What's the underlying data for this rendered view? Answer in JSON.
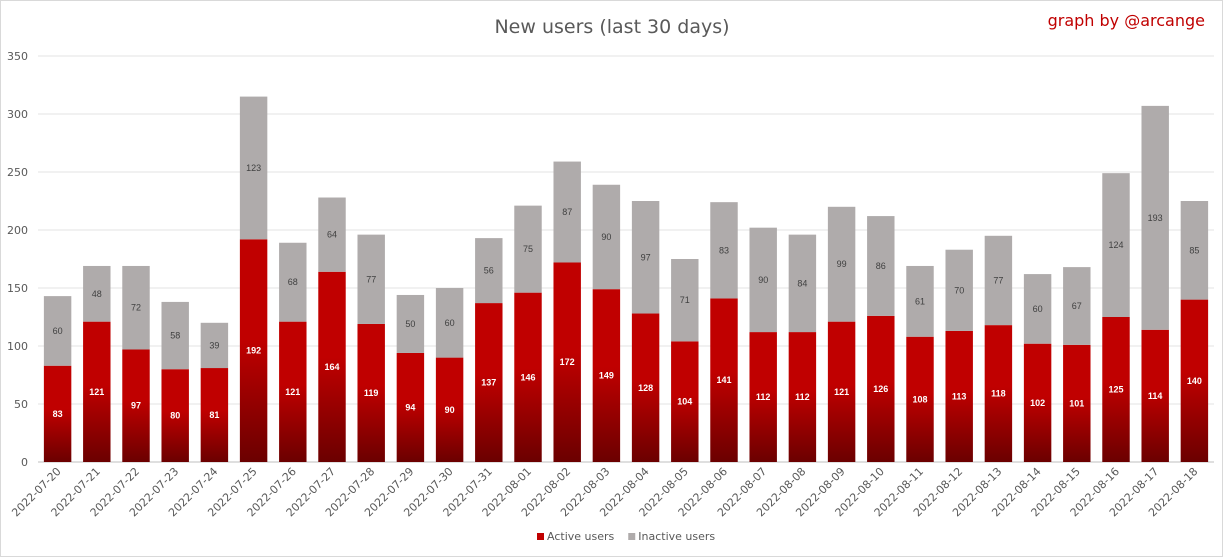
{
  "chart_data": {
    "type": "bar",
    "stacked": true,
    "title": "New users (last 30 days)",
    "credit": "graph by @arcange",
    "categories": [
      "2022-07-20",
      "2022-07-21",
      "2022-07-22",
      "2022-07-23",
      "2022-07-24",
      "2022-07-25",
      "2022-07-26",
      "2022-07-27",
      "2022-07-28",
      "2022-07-29",
      "2022-07-30",
      "2022-07-31",
      "2022-08-01",
      "2022-08-02",
      "2022-08-03",
      "2022-08-04",
      "2022-08-05",
      "2022-08-06",
      "2022-08-07",
      "2022-08-08",
      "2022-08-09",
      "2022-08-10",
      "2022-08-11",
      "2022-08-12",
      "2022-08-13",
      "2022-08-14",
      "2022-08-15",
      "2022-08-16",
      "2022-08-17",
      "2022-08-18"
    ],
    "series": [
      {
        "name": "Active users",
        "color": "#c00000",
        "values": [
          83,
          121,
          97,
          80,
          81,
          192,
          121,
          164,
          119,
          94,
          90,
          137,
          146,
          172,
          149,
          128,
          104,
          141,
          112,
          112,
          121,
          126,
          108,
          113,
          118,
          102,
          101,
          125,
          114,
          140
        ]
      },
      {
        "name": "Inactive users",
        "color": "#afabab",
        "values": [
          60,
          48,
          72,
          58,
          39,
          123,
          68,
          64,
          77,
          50,
          60,
          56,
          75,
          87,
          90,
          97,
          71,
          83,
          90,
          84,
          99,
          86,
          61,
          70,
          77,
          60,
          67,
          124,
          193,
          85
        ]
      }
    ],
    "ylim": [
      0,
      350
    ],
    "yticks": [
      0,
      50,
      100,
      150,
      200,
      250,
      300,
      350
    ],
    "grid": true,
    "legend_position": "bottom"
  }
}
